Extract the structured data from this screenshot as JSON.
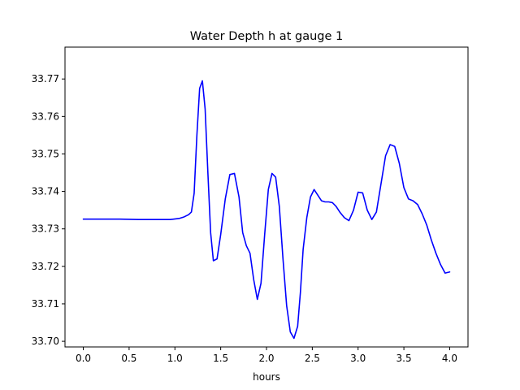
{
  "chart_data": {
    "type": "line",
    "title": "Water Depth h at gauge 1",
    "xlabel": "hours",
    "ylabel": "",
    "xlim": [
      -0.2,
      4.2
    ],
    "ylim": [
      33.6985,
      33.7785
    ],
    "xticks": [
      0.0,
      0.5,
      1.0,
      1.5,
      2.0,
      2.5,
      3.0,
      3.5,
      4.0
    ],
    "xtick_labels": [
      "0.0",
      "0.5",
      "1.0",
      "1.5",
      "2.0",
      "2.5",
      "3.0",
      "3.5",
      "4.0"
    ],
    "yticks": [
      33.7,
      33.71,
      33.72,
      33.73,
      33.74,
      33.75,
      33.76,
      33.77
    ],
    "ytick_labels": [
      "33.70",
      "33.71",
      "33.72",
      "33.73",
      "33.74",
      "33.75",
      "33.76",
      "33.77"
    ],
    "grid": false,
    "series": [
      {
        "color": "#0000ff",
        "x": [
          0.0,
          0.2,
          0.4,
          0.6,
          0.8,
          0.95,
          1.05,
          1.1,
          1.15,
          1.18,
          1.21,
          1.24,
          1.27,
          1.3,
          1.33,
          1.36,
          1.39,
          1.42,
          1.46,
          1.5,
          1.55,
          1.6,
          1.65,
          1.7,
          1.74,
          1.78,
          1.82,
          1.86,
          1.9,
          1.94,
          1.98,
          2.02,
          2.06,
          2.1,
          2.14,
          2.18,
          2.22,
          2.26,
          2.3,
          2.34,
          2.37,
          2.4,
          2.44,
          2.48,
          2.52,
          2.56,
          2.6,
          2.64,
          2.68,
          2.72,
          2.76,
          2.8,
          2.85,
          2.9,
          2.95,
          3.0,
          3.05,
          3.1,
          3.15,
          3.2,
          3.25,
          3.3,
          3.35,
          3.4,
          3.45,
          3.5,
          3.55,
          3.6,
          3.65,
          3.7,
          3.75,
          3.8,
          3.85,
          3.9,
          3.95,
          4.0
        ],
        "y": [
          33.7326,
          33.7326,
          33.7326,
          33.7325,
          33.7325,
          33.7325,
          33.7328,
          33.7332,
          33.7338,
          33.7345,
          33.7395,
          33.755,
          33.7675,
          33.7695,
          33.762,
          33.745,
          33.729,
          33.7215,
          33.722,
          33.7285,
          33.738,
          33.7445,
          33.7448,
          33.7385,
          33.729,
          33.7255,
          33.7235,
          33.7165,
          33.7112,
          33.7155,
          33.7285,
          33.7405,
          33.7448,
          33.7438,
          33.736,
          33.722,
          33.7095,
          33.7025,
          33.7008,
          33.704,
          33.713,
          33.7245,
          33.733,
          33.7385,
          33.7405,
          33.739,
          33.7375,
          33.7372,
          33.7372,
          33.737,
          33.736,
          33.7345,
          33.733,
          33.7322,
          33.735,
          33.7398,
          33.7396,
          33.735,
          33.7325,
          33.7345,
          33.742,
          33.7495,
          33.7525,
          33.752,
          33.7475,
          33.741,
          33.738,
          33.7375,
          33.7365,
          33.734,
          33.731,
          33.727,
          33.7235,
          33.7205,
          33.7182,
          33.7185
        ]
      }
    ]
  }
}
